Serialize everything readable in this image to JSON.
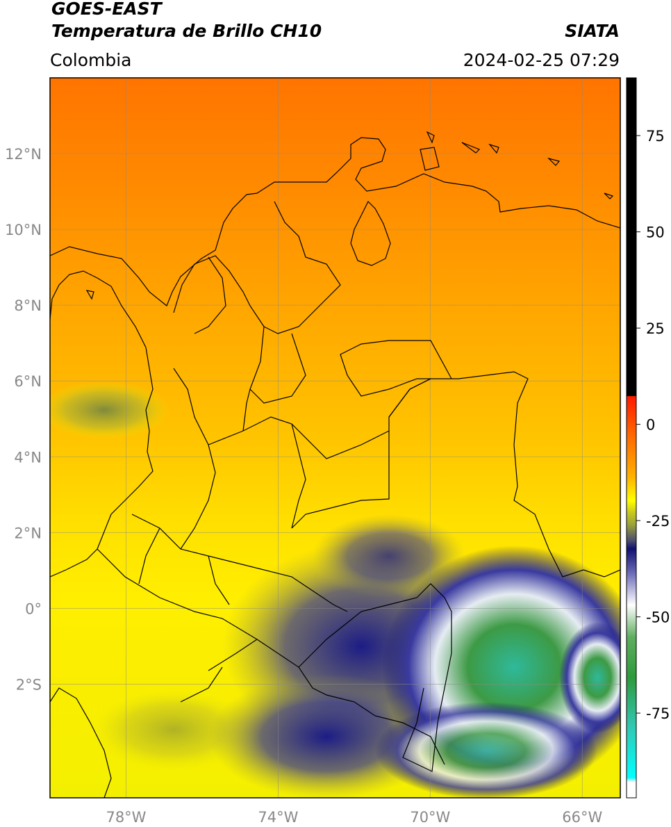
{
  "header": {
    "line1": "GOES-EAST",
    "line2": "Temperatura de Brillo CH10",
    "source": "SIATA",
    "region": "Colombia",
    "timestamp": "2024-02-25 07:29"
  },
  "map": {
    "lon_ticks": [
      "78°W",
      "74°W",
      "70°W",
      "66°W"
    ],
    "lat_ticks": [
      "12°N",
      "10°N",
      "8°N",
      "6°N",
      "4°N",
      "2°N",
      "0°",
      "2°S"
    ],
    "extent": {
      "lon_min": -80.0,
      "lon_max": -65.0,
      "lat_min": -5.0,
      "lat_max": 14.0
    }
  },
  "colorbar": {
    "ticks": [
      "75",
      "50",
      "25",
      "0",
      "-25",
      "-50",
      "-75"
    ],
    "range": [
      -97,
      90
    ],
    "colors": {
      "black": "#000000",
      "red": "#ff1a00",
      "orange": "#ff8c00",
      "yellow": "#ffff00",
      "olive": "#9aa23a",
      "navy": "#101070",
      "white": "#ffffff",
      "green": "#2e9a3c",
      "teal": "#32c7b0",
      "cyan": "#00ffff"
    }
  }
}
